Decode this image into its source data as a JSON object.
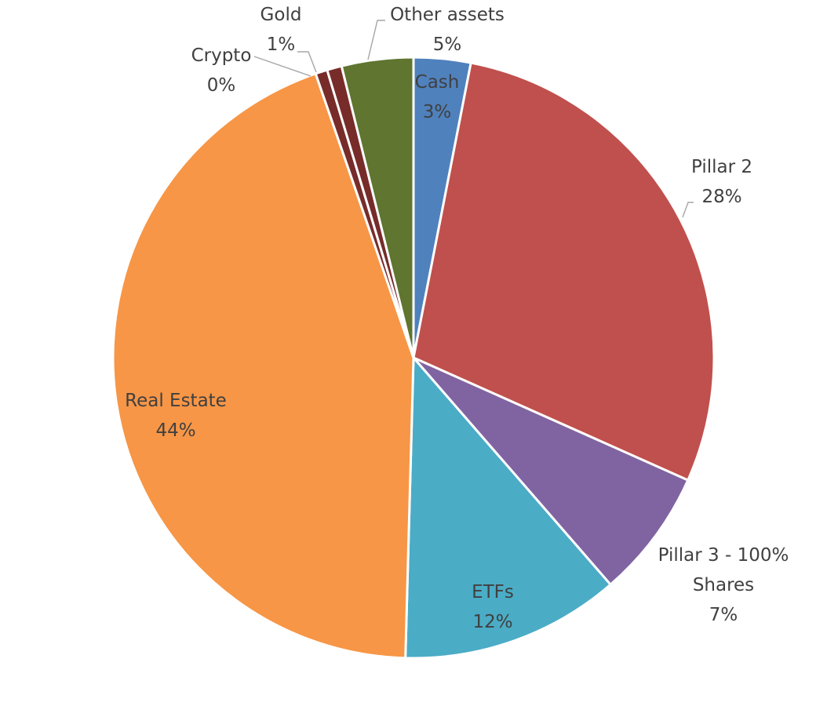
{
  "chart_data": {
    "type": "pie",
    "title": "",
    "slices": [
      {
        "name": "Cash",
        "value": 3,
        "label": "3%",
        "color": "#4f81bd"
      },
      {
        "name": "Pillar 2",
        "value": 28,
        "label": "28%",
        "color": "#c0504d"
      },
      {
        "name": "Pillar 3 - 100% Shares",
        "name_lines": [
          "Pillar 3 - 100%",
          "Shares"
        ],
        "value": 7,
        "label": "7%",
        "color": "#8064a2"
      },
      {
        "name": "ETFs",
        "value": 12,
        "label": "12%",
        "color": "#4bacc6"
      },
      {
        "name": "Real Estate",
        "value": 44,
        "label": "44%",
        "color": "#f79646"
      },
      {
        "name": "Crypto",
        "value": 0,
        "label": "0%",
        "color": "#772c2a"
      },
      {
        "name": "Gold",
        "value": 1,
        "label": "1%",
        "color": "#772c2a"
      },
      {
        "name": "Other assets",
        "value": 5,
        "label": "5%",
        "color": "#5f7530"
      }
    ],
    "legend": "none",
    "label_color": "#404040"
  }
}
